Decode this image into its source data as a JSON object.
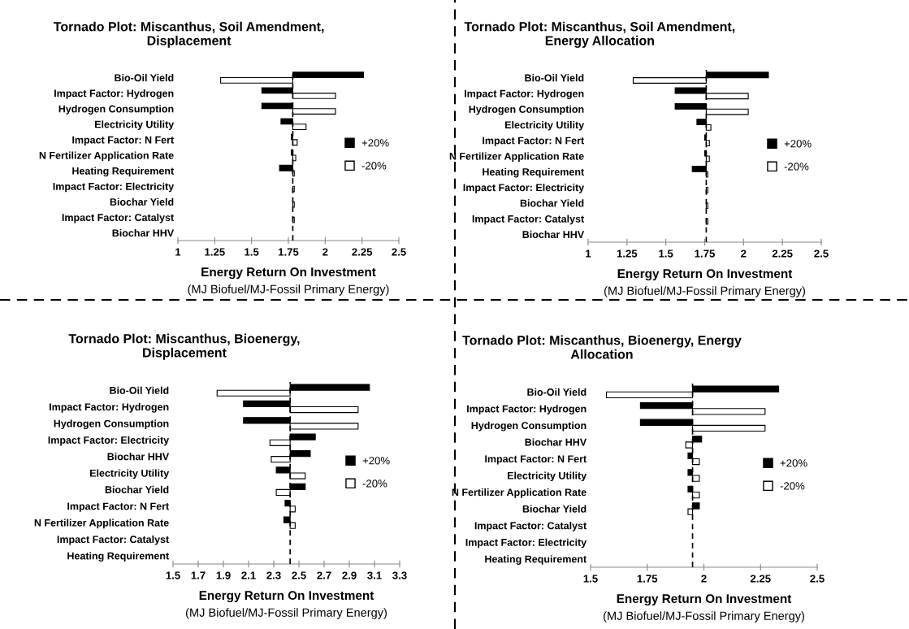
{
  "chart_data": [
    {
      "type": "bar",
      "orientation": "horizontal",
      "title": "Tornado Plot: Miscanthus, Soil Amendment,\nDisplacement",
      "xlabel": "Energy Return On Investment",
      "annotations": [
        "(MJ Biofuel/MJ-Fossil Primary Energy)"
      ],
      "categories": [
        "Bio-Oil Yield",
        "Impact Factor: Hydrogen",
        "Hydrogen Consumption",
        "Electricity Utility",
        "Impact Factor: N Fert",
        "N Fertilizer Application Rate",
        "Heating Requirement",
        "Impact Factor: Electricity",
        "Biochar Yield",
        "Impact Factor: Catalyst",
        "Biochar HHV"
      ],
      "series": [
        {
          "name": "+20%",
          "color": "#000000",
          "base": [
            1.78,
            1.78,
            1.78,
            1.78,
            1.78,
            1.78,
            1.78,
            null,
            null,
            null,
            null
          ],
          "values": [
            0.48,
            -0.21,
            -0.21,
            -0.08,
            -0.01,
            -0.01,
            -0.09,
            null,
            null,
            null,
            null
          ]
        },
        {
          "name": "-20%",
          "color": "#ffffff",
          "base": [
            1.78,
            1.78,
            1.78,
            1.78,
            1.78,
            1.78,
            1.78,
            1.78,
            1.78,
            1.78,
            null
          ],
          "values": [
            -0.49,
            0.29,
            0.29,
            0.09,
            0.03,
            0.02,
            0.01,
            0.01,
            0.01,
            0.01,
            null
          ]
        }
      ],
      "xlim": [
        1,
        2.5
      ],
      "xticks": [
        1,
        1.25,
        1.5,
        1.75,
        2,
        2.25,
        2.5
      ],
      "ref_lines": [
        {
          "axis": "x",
          "value": 1.78,
          "color": "#000000",
          "line_style": "dashed"
        }
      ],
      "legend": "right",
      "grid": false
    },
    {
      "type": "bar",
      "orientation": "horizontal",
      "title": "Tornado Plot: Miscanthus, Soil Amendment,\nEnergy Allocation",
      "xlabel": "Energy Return On Investment",
      "annotations": [
        "(MJ Biofuel/MJ-Fossil Primary Energy)"
      ],
      "categories": [
        "Bio-Oil Yield",
        "Impact Factor: Hydrogen",
        "Hydrogen Consumption",
        "Electricity Utility",
        "Impact Factor: N Fert",
        "N Fertilizer Application Rate",
        "Heating Requirement",
        "Impact Factor: Electricity",
        "Biochar Yield",
        "Impact Factor: Catalyst",
        "Biochar HHV"
      ],
      "series": [
        {
          "name": "+20%",
          "color": "#000000",
          "base": [
            1.76,
            1.76,
            1.76,
            1.76,
            1.76,
            1.76,
            1.76,
            null,
            null,
            null,
            null
          ],
          "values": [
            0.4,
            -0.2,
            -0.2,
            -0.06,
            -0.01,
            -0.01,
            -0.09,
            null,
            null,
            null,
            null
          ]
        },
        {
          "name": "-20%",
          "color": "#ffffff",
          "base": [
            1.76,
            1.76,
            1.76,
            1.76,
            1.76,
            1.76,
            1.76,
            1.76,
            1.76,
            1.76,
            null
          ],
          "values": [
            -0.47,
            0.27,
            0.27,
            0.03,
            0.02,
            0.02,
            0.01,
            0.01,
            0.01,
            0.01,
            null
          ]
        }
      ],
      "xlim": [
        1,
        2.5
      ],
      "xticks": [
        1,
        1.25,
        1.5,
        1.75,
        2,
        2.25,
        2.5
      ],
      "ref_lines": [
        {
          "axis": "x",
          "value": 1.76,
          "color": "#000000",
          "line_style": "dashed"
        }
      ],
      "legend": "right",
      "grid": false
    },
    {
      "type": "bar",
      "orientation": "horizontal",
      "title": "Tornado Plot: Miscanthus, Bioenergy,\nDisplacement",
      "xlabel": "Energy Return On Investment",
      "annotations": [
        "(MJ Biofuel/MJ-Fossil Primary Energy)"
      ],
      "categories": [
        "Bio-Oil Yield",
        "Impact Factor: Hydrogen",
        "Hydrogen Consumption",
        "Impact Factor: Electricity",
        "Biochar HHV",
        "Electricity Utility",
        "Biochar Yield",
        "Impact Factor: N Fert",
        "N Fertilizer Application Rate",
        "Impact Factor: Catalyst",
        "Heating Requirement"
      ],
      "series": [
        {
          "name": "+20%",
          "color": "#000000",
          "base": [
            2.43,
            2.43,
            2.43,
            2.43,
            2.43,
            2.43,
            2.43,
            2.43,
            2.43,
            null,
            null
          ],
          "values": [
            0.63,
            -0.37,
            -0.37,
            0.2,
            0.16,
            -0.11,
            0.12,
            -0.04,
            -0.05,
            null,
            null
          ]
        },
        {
          "name": "-20%",
          "color": "#ffffff",
          "base": [
            2.43,
            2.43,
            2.43,
            2.43,
            2.43,
            2.43,
            2.43,
            2.43,
            2.43,
            null,
            null
          ],
          "values": [
            -0.58,
            0.54,
            0.54,
            -0.16,
            -0.15,
            0.12,
            -0.11,
            0.04,
            0.04,
            null,
            null
          ]
        }
      ],
      "xlim": [
        1.5,
        3.3
      ],
      "xticks": [
        1.5,
        1.7,
        1.9,
        2.1,
        2.3,
        2.5,
        2.7,
        2.9,
        3.1,
        3.3
      ],
      "ref_lines": [
        {
          "axis": "x",
          "value": 2.43,
          "color": "#000000",
          "line_style": "dashed"
        }
      ],
      "legend": "right",
      "grid": false
    },
    {
      "type": "bar",
      "orientation": "horizontal",
      "title": "Tornado Plot: Miscanthus, Bioenergy, Energy\nAllocation",
      "xlabel": "Energy Return On Investment",
      "annotations": [
        "(MJ Biofuel/MJ-Fossil Primary Energy)"
      ],
      "categories": [
        "Bio-Oil Yield",
        "Impact Factor: Hydrogen",
        "Hydrogen Consumption",
        "Biochar HHV",
        "Impact Factor: N Fert",
        "Electricity Utility",
        "N Fertilizer Application Rate",
        "Biochar Yield",
        "Impact Factor: Catalyst",
        "Impact Factor: Electricity",
        "Heating Requirement"
      ],
      "series": [
        {
          "name": "+20%",
          "color": "#000000",
          "base": [
            1.95,
            1.95,
            1.95,
            1.95,
            1.95,
            1.95,
            1.95,
            1.95,
            null,
            null,
            null
          ],
          "values": [
            0.38,
            -0.23,
            -0.23,
            0.04,
            -0.02,
            -0.02,
            -0.02,
            0.03,
            null,
            null,
            null
          ]
        },
        {
          "name": "-20%",
          "color": "#ffffff",
          "base": [
            1.95,
            1.95,
            1.95,
            1.95,
            1.95,
            1.95,
            1.95,
            1.95,
            null,
            null,
            null
          ],
          "values": [
            -0.38,
            0.32,
            0.32,
            -0.03,
            0.03,
            0.03,
            0.03,
            -0.02,
            null,
            null,
            null
          ]
        }
      ],
      "xlim": [
        1.5,
        2.5
      ],
      "xticks": [
        1.5,
        1.75,
        2,
        2.25,
        2.5
      ],
      "ref_lines": [
        {
          "axis": "x",
          "value": 1.95,
          "color": "#000000",
          "line_style": "dashed"
        }
      ],
      "legend": "right",
      "grid": false
    }
  ]
}
